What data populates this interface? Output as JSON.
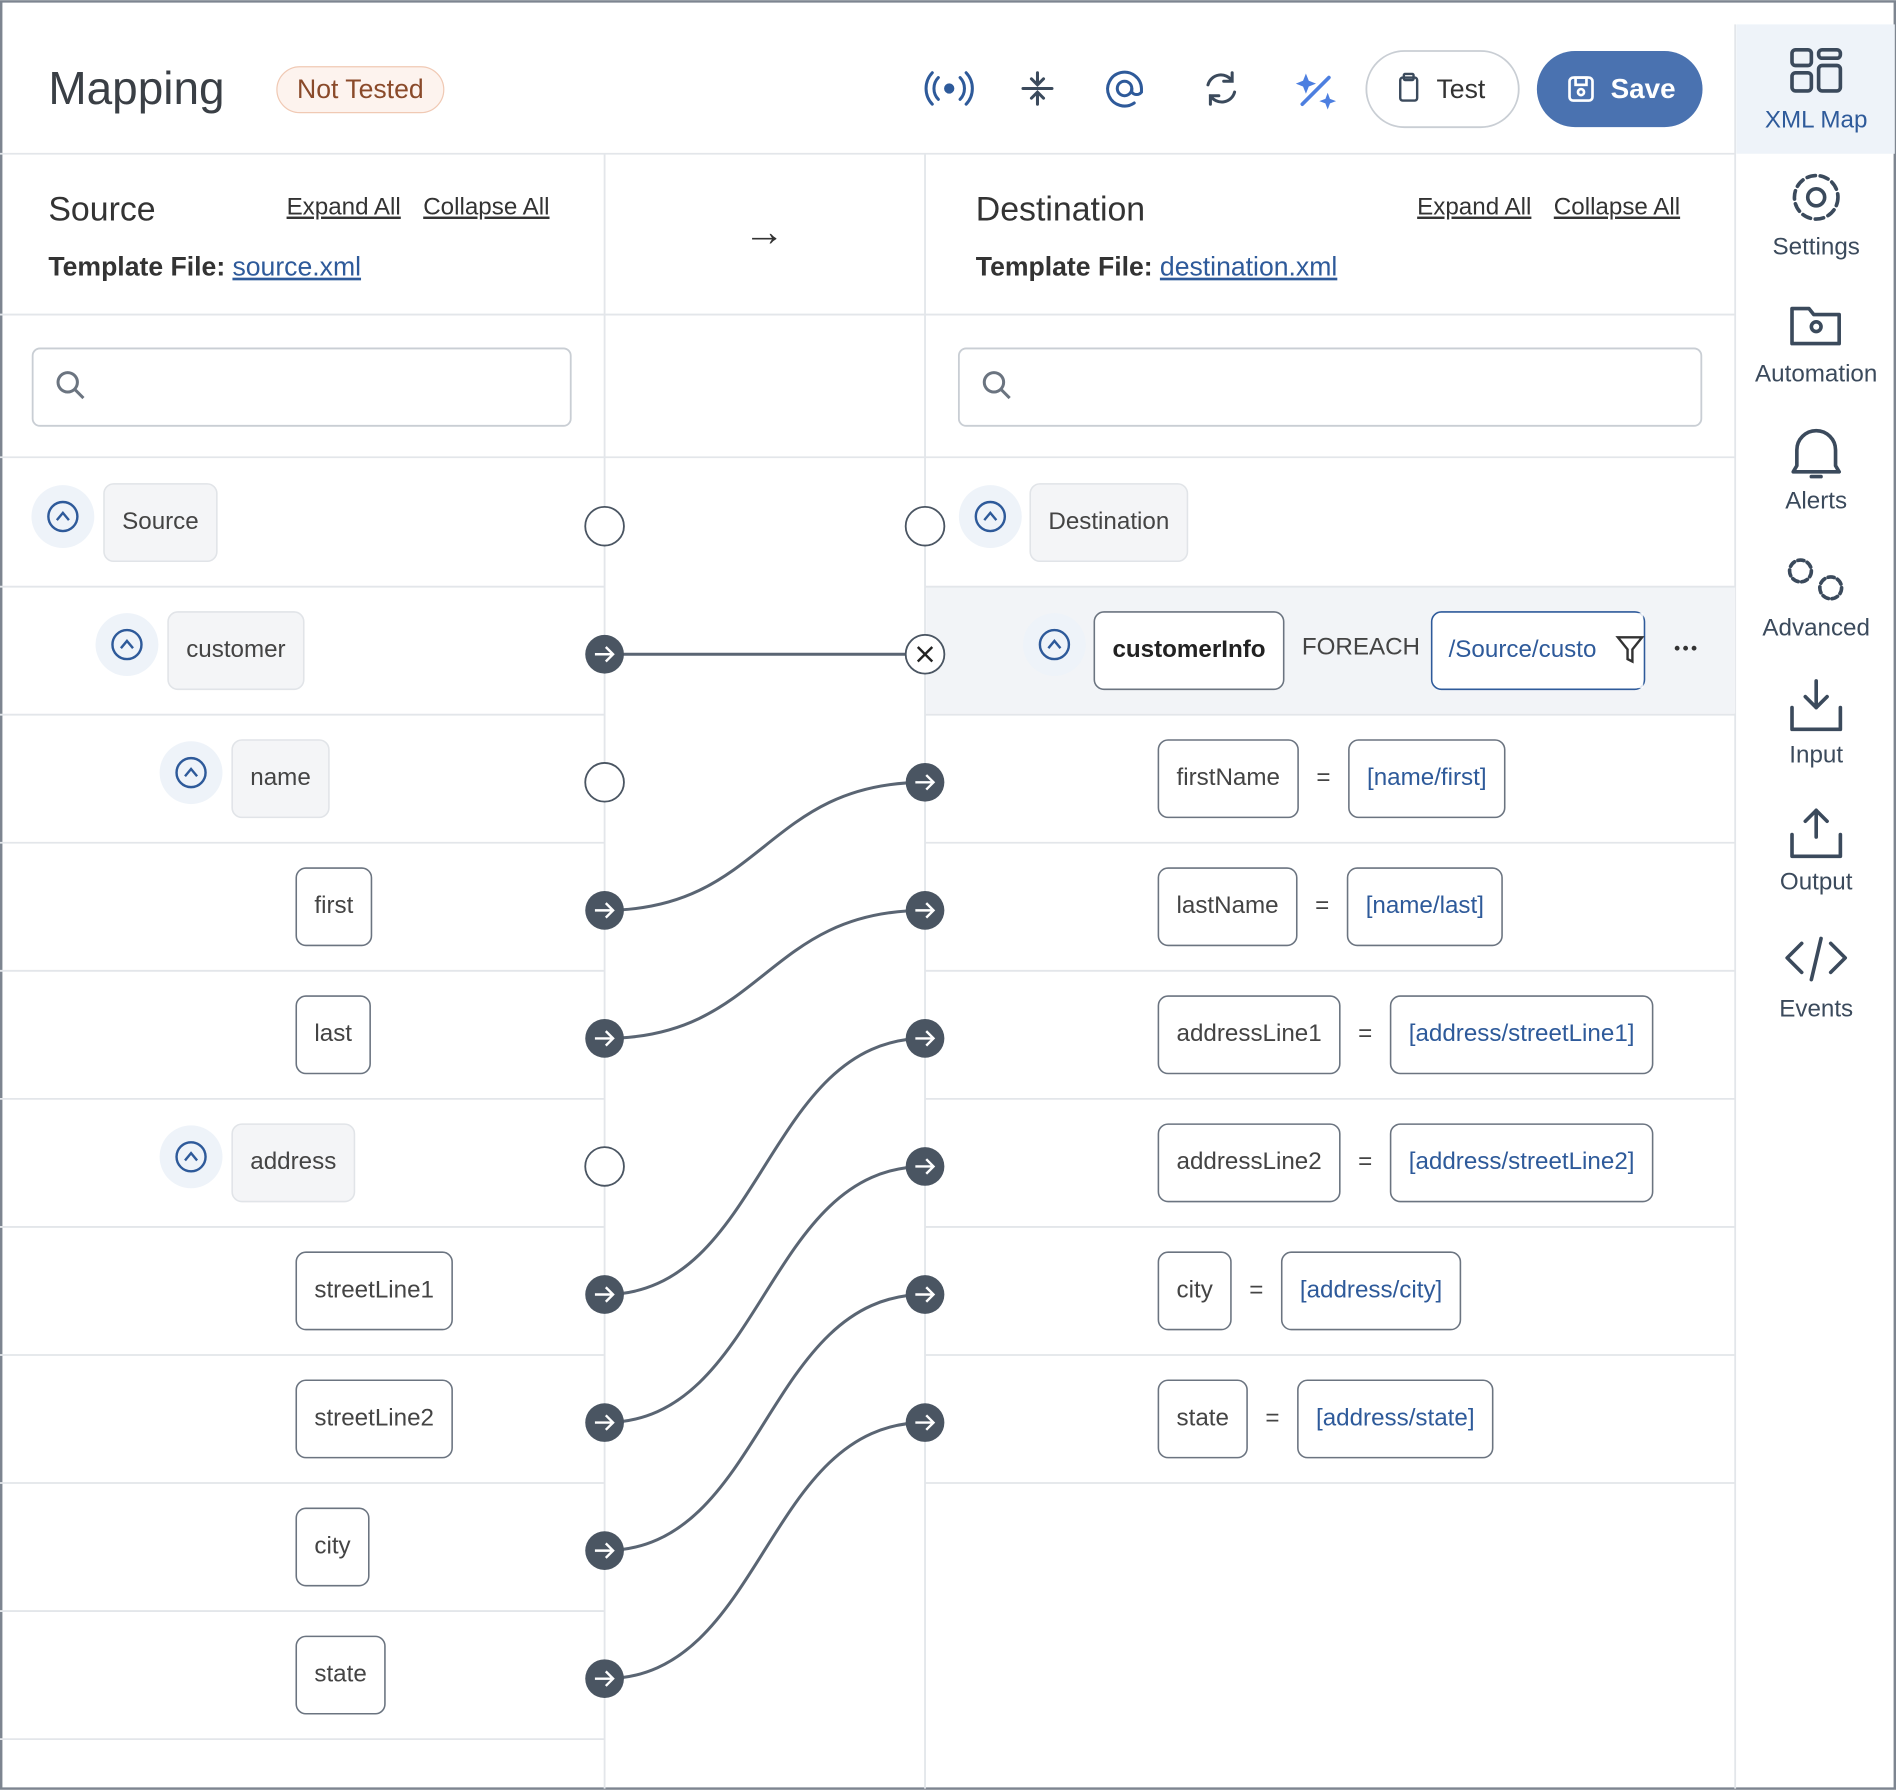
{
  "header": {
    "title": "Mapping",
    "status": "Not Tested",
    "test": "Test",
    "save": "Save"
  },
  "source": {
    "title": "Source",
    "expand_all": "Expand All",
    "collapse_all": "Collapse All",
    "template_label": "Template File:",
    "template_file": "source.xml",
    "nodes": [
      {
        "label": "Source"
      },
      {
        "label": "customer"
      },
      {
        "label": "name"
      },
      {
        "label": "first"
      },
      {
        "label": "last"
      },
      {
        "label": "address"
      },
      {
        "label": "streetLine1"
      },
      {
        "label": "streetLine2"
      },
      {
        "label": "city"
      },
      {
        "label": "state"
      }
    ]
  },
  "destination": {
    "title": "Destination",
    "expand_all": "Expand All",
    "collapse_all": "Collapse All",
    "template_label": "Template File:",
    "template_file": "destination.xml",
    "nodes": [
      {
        "label": "Destination"
      },
      {
        "label": "customerInfo",
        "op": "FOREACH",
        "expr": "/Source/custo"
      },
      {
        "label": "firstName",
        "op": "=",
        "expr": "[name/first]"
      },
      {
        "label": "lastName",
        "op": "=",
        "expr": "[name/last]"
      },
      {
        "label": "addressLine1",
        "op": "=",
        "expr": "[address/streetLine1]"
      },
      {
        "label": "addressLine2",
        "op": "=",
        "expr": "[address/streetLine2]"
      },
      {
        "label": "city",
        "op": "=",
        "expr": "[address/city]"
      },
      {
        "label": "state",
        "op": "=",
        "expr": "[address/state]"
      }
    ]
  },
  "sidebar": {
    "items": [
      "XML Map",
      "Settings",
      "Automation",
      "Alerts",
      "Advanced",
      "Input",
      "Output",
      "Events"
    ]
  }
}
